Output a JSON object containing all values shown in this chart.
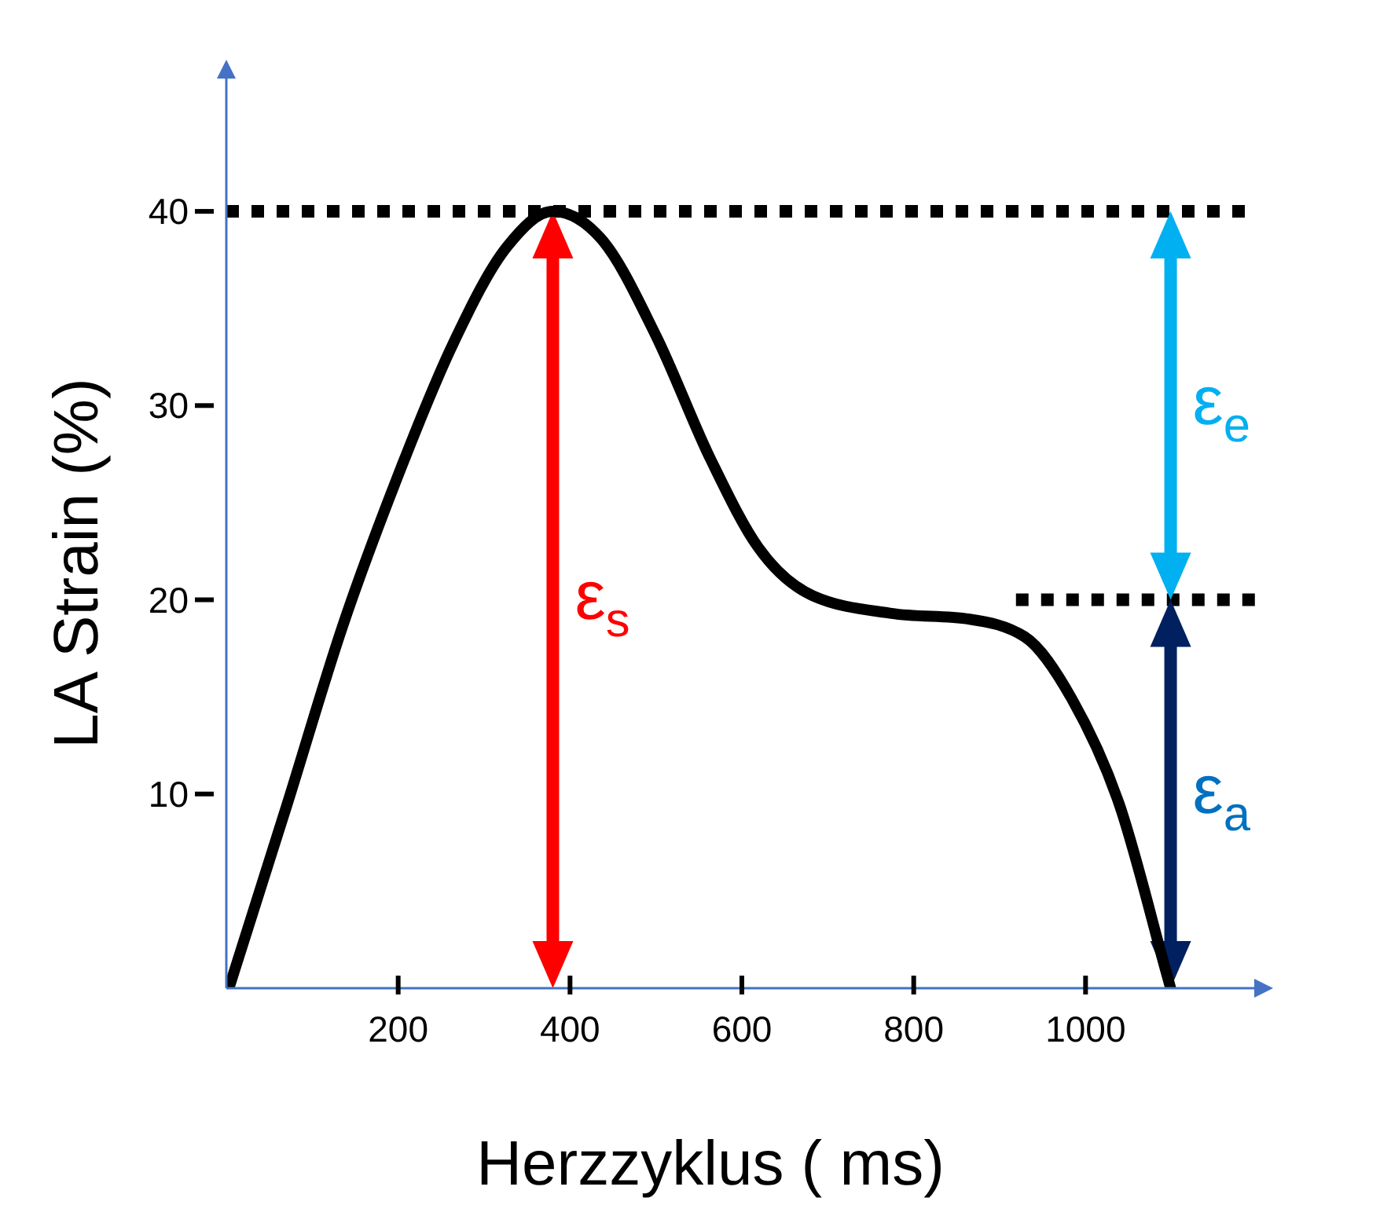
{
  "chart_data": {
    "type": "line",
    "xlabel": "Herzzyklus ( ms)",
    "ylabel": "LA Strain (%)",
    "xlim": [
      0,
      1200
    ],
    "ylim": [
      0,
      47
    ],
    "xticks": [
      200,
      400,
      600,
      800,
      1000
    ],
    "yticks": [
      10,
      20,
      30,
      40
    ],
    "series": [
      {
        "color": "#000000",
        "x": [
          3,
          71,
          135,
          199,
          263,
          327,
          380,
          436,
          500,
          564,
          619,
          683,
          774,
          865,
          929,
          984,
          1039,
          1094,
          1099
        ],
        "values": [
          0,
          9.5,
          18.6,
          26.3,
          33.1,
          38.2,
          40,
          38.6,
          33.6,
          27.2,
          22.7,
          20.2,
          19.3,
          19,
          18.1,
          14.9,
          9.5,
          0.8,
          0
        ]
      }
    ],
    "ref_lines": [
      {
        "axis": "y",
        "value": 40,
        "color": "#000000",
        "line_style": "dotted"
      },
      {
        "axis": "y",
        "value": 20,
        "color": "#000000",
        "line_style": "dotted"
      }
    ],
    "annotations": [
      "ε$_{s}$",
      "ε$_{e}$",
      "ε$_{a}$"
    ]
  }
}
